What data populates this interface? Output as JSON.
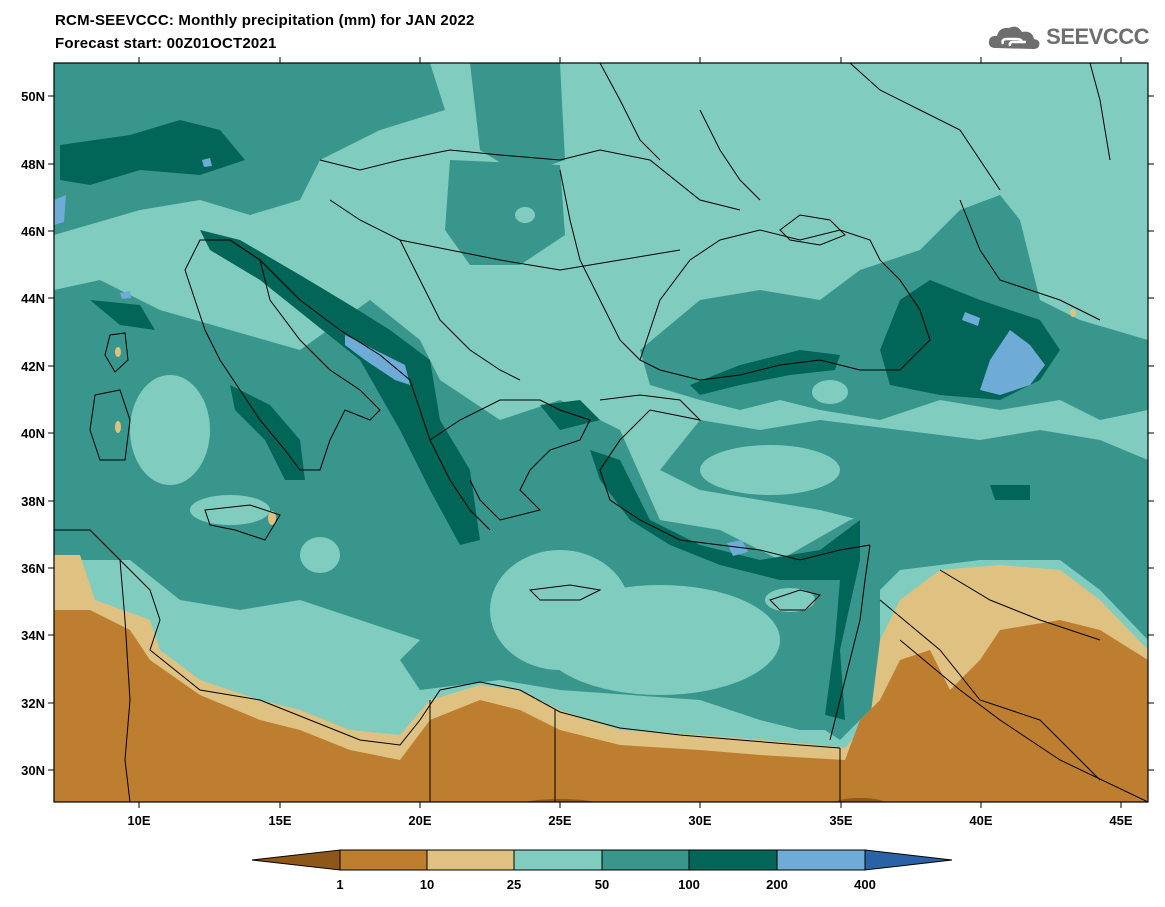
{
  "header": {
    "title": "RCM-SEEVCCC: Monthly precipitation (mm) for JAN 2022",
    "subtitle": "Forecast start: 00Z01OCT2021",
    "logo_text": "SEEVCCC",
    "logo_icon": "cloud-logo-icon"
  },
  "map": {
    "lon_labels": [
      "10E",
      "15E",
      "20E",
      "25E",
      "30E",
      "35E",
      "40E",
      "45E"
    ],
    "lat_labels": [
      "50N",
      "48N",
      "46N",
      "44N",
      "42N",
      "40N",
      "38N",
      "36N",
      "34N",
      "32N",
      "30N"
    ],
    "colors": {
      "lt1": "#8f5619",
      "c1_10": "#bd7e30",
      "c10_25": "#dfc281",
      "c25_50": "#80cdc0",
      "c50_100": "#38968c",
      "c100_200": "#016658",
      "c200_400": "#6fabd7",
      "gt400": "#2a63a5"
    }
  },
  "colorbar": {
    "labels": [
      "1",
      "10",
      "25",
      "50",
      "100",
      "200",
      "400"
    ]
  }
}
